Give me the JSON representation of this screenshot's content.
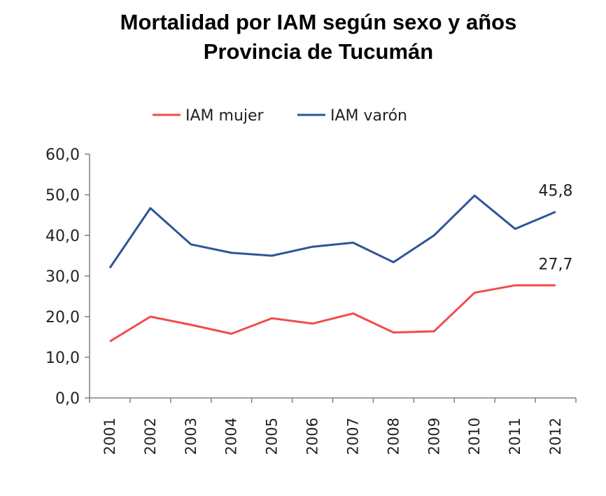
{
  "chart_data": {
    "type": "line",
    "title": [
      "Mortalidad por IAM según sexo y años",
      "Provincia de Tucumán"
    ],
    "categories": [
      "2001",
      "2002",
      "2003",
      "2004",
      "2005",
      "2006",
      "2007",
      "2008",
      "2009",
      "2010",
      "2011",
      "2012"
    ],
    "series": [
      {
        "name": "IAM mujer",
        "color": "#f44b4b",
        "values": [
          13.9,
          20.0,
          18.0,
          15.8,
          19.6,
          18.3,
          20.8,
          16.1,
          16.4,
          25.9,
          27.7,
          27.7
        ]
      },
      {
        "name": "IAM varón",
        "color": "#2f5597",
        "values": [
          32.0,
          46.7,
          37.8,
          35.7,
          35.0,
          37.2,
          38.2,
          33.4,
          40.0,
          49.8,
          41.6,
          45.8
        ]
      }
    ],
    "ylim": [
      0,
      60
    ],
    "yticks": [
      "0,0",
      "10,0",
      "20,0",
      "30,0",
      "40,0",
      "50,0",
      "60,0"
    ],
    "annotations": [
      {
        "series": 1,
        "index": 11,
        "text": "45,8"
      },
      {
        "series": 0,
        "index": 11,
        "text": "27,7"
      }
    ],
    "legend_position": "top",
    "grid": false,
    "xlabel": "",
    "ylabel": ""
  }
}
